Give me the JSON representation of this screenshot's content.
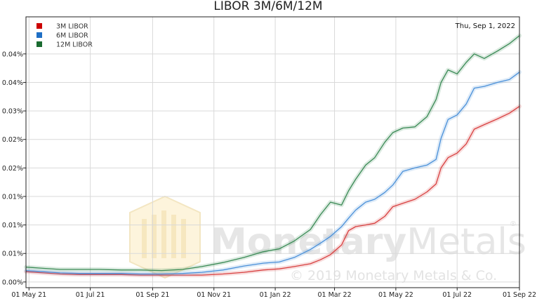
{
  "watermark": {
    "brand_part1": "Monetary",
    "brand_part2": "Metals",
    "registered": "®",
    "copyright": "© 2019 Monetary Metals & Co."
  },
  "date_label": "Thu, Sep 1, 2022",
  "chart_data": {
    "type": "line",
    "title": "LIBOR 3M/6M/12M",
    "xlabel": "",
    "ylabel": "",
    "x_range": [
      "2021-04-28",
      "2022-09-01"
    ],
    "y_range": [
      -0.001,
      0.0465
    ],
    "x_ticks": [
      {
        "date": "2021-05-01",
        "label": "01 May 21"
      },
      {
        "date": "2021-07-01",
        "label": "01 Jul 21"
      },
      {
        "date": "2021-09-01",
        "label": "01 Sep 21"
      },
      {
        "date": "2021-11-01",
        "label": "01 Nov 21"
      },
      {
        "date": "2022-01-01",
        "label": "01 Jan 22"
      },
      {
        "date": "2022-03-01",
        "label": "01 Mar 22"
      },
      {
        "date": "2022-05-01",
        "label": "01 May 22"
      },
      {
        "date": "2022-07-01",
        "label": "01 Jul 22"
      },
      {
        "date": "2022-09-01",
        "label": "01 Sep 22"
      }
    ],
    "y_ticks": [
      {
        "value": 0.0,
        "label": "0.00%"
      },
      {
        "value": 0.005,
        "label": "0.01%"
      },
      {
        "value": 0.01,
        "label": "0.01%"
      },
      {
        "value": 0.015,
        "label": "0.01%"
      },
      {
        "value": 0.02,
        "label": "0.02%"
      },
      {
        "value": 0.025,
        "label": "0.02%"
      },
      {
        "value": 0.03,
        "label": "0.03%"
      },
      {
        "value": 0.035,
        "label": "0.04%"
      },
      {
        "value": 0.04,
        "label": "0.04%"
      }
    ],
    "grid": true,
    "legend_position": "top-left",
    "series": [
      {
        "name": "3M LIBOR",
        "color": "#d84040",
        "legend_color": "#cc0000",
        "points": [
          [
            "2021-04-28",
            0.0018
          ],
          [
            "2021-05-15",
            0.0016
          ],
          [
            "2021-06-01",
            0.0014
          ],
          [
            "2021-06-20",
            0.0013
          ],
          [
            "2021-07-10",
            0.0013
          ],
          [
            "2021-08-01",
            0.0013
          ],
          [
            "2021-08-20",
            0.0012
          ],
          [
            "2021-09-10",
            0.0012
          ],
          [
            "2021-10-01",
            0.0012
          ],
          [
            "2021-10-20",
            0.0012
          ],
          [
            "2021-11-10",
            0.0014
          ],
          [
            "2021-12-01",
            0.0017
          ],
          [
            "2021-12-20",
            0.0021
          ],
          [
            "2022-01-05",
            0.0023
          ],
          [
            "2022-01-20",
            0.0027
          ],
          [
            "2022-02-05",
            0.0032
          ],
          [
            "2022-02-15",
            0.0039
          ],
          [
            "2022-02-25",
            0.0048
          ],
          [
            "2022-03-08",
            0.0065
          ],
          [
            "2022-03-15",
            0.009
          ],
          [
            "2022-03-22",
            0.0097
          ],
          [
            "2022-04-01",
            0.01
          ],
          [
            "2022-04-10",
            0.0103
          ],
          [
            "2022-04-20",
            0.0115
          ],
          [
            "2022-04-28",
            0.0132
          ],
          [
            "2022-05-08",
            0.0138
          ],
          [
            "2022-05-20",
            0.0145
          ],
          [
            "2022-06-01",
            0.0158
          ],
          [
            "2022-06-10",
            0.0172
          ],
          [
            "2022-06-15",
            0.02
          ],
          [
            "2022-06-22",
            0.0218
          ],
          [
            "2022-07-01",
            0.0226
          ],
          [
            "2022-07-10",
            0.0242
          ],
          [
            "2022-07-18",
            0.0268
          ],
          [
            "2022-07-28",
            0.0276
          ],
          [
            "2022-08-10",
            0.0286
          ],
          [
            "2022-08-22",
            0.0296
          ],
          [
            "2022-09-01",
            0.0308
          ]
        ]
      },
      {
        "name": "6M LIBOR",
        "color": "#4a90d9",
        "legend_color": "#1f6fc5",
        "points": [
          [
            "2021-04-28",
            0.002
          ],
          [
            "2021-05-15",
            0.0018
          ],
          [
            "2021-06-01",
            0.0016
          ],
          [
            "2021-06-20",
            0.0015
          ],
          [
            "2021-07-10",
            0.0015
          ],
          [
            "2021-08-01",
            0.0015
          ],
          [
            "2021-08-20",
            0.0014
          ],
          [
            "2021-09-10",
            0.0014
          ],
          [
            "2021-10-01",
            0.0015
          ],
          [
            "2021-10-20",
            0.0017
          ],
          [
            "2021-11-10",
            0.0021
          ],
          [
            "2021-12-01",
            0.0028
          ],
          [
            "2021-12-20",
            0.0033
          ],
          [
            "2022-01-05",
            0.0035
          ],
          [
            "2022-01-20",
            0.0043
          ],
          [
            "2022-02-05",
            0.0057
          ],
          [
            "2022-02-15",
            0.0068
          ],
          [
            "2022-02-25",
            0.008
          ],
          [
            "2022-03-08",
            0.0097
          ],
          [
            "2022-03-15",
            0.0112
          ],
          [
            "2022-03-22",
            0.0126
          ],
          [
            "2022-04-01",
            0.014
          ],
          [
            "2022-04-10",
            0.0145
          ],
          [
            "2022-04-20",
            0.0157
          ],
          [
            "2022-04-28",
            0.017
          ],
          [
            "2022-05-08",
            0.0194
          ],
          [
            "2022-05-20",
            0.02
          ],
          [
            "2022-06-01",
            0.0205
          ],
          [
            "2022-06-10",
            0.0215
          ],
          [
            "2022-06-15",
            0.0252
          ],
          [
            "2022-06-22",
            0.0285
          ],
          [
            "2022-07-01",
            0.0293
          ],
          [
            "2022-07-10",
            0.0312
          ],
          [
            "2022-07-18",
            0.034
          ],
          [
            "2022-07-28",
            0.0343
          ],
          [
            "2022-08-10",
            0.035
          ],
          [
            "2022-08-22",
            0.0355
          ],
          [
            "2022-09-01",
            0.0368
          ]
        ]
      },
      {
        "name": "12M LIBOR",
        "color": "#3a8a55",
        "legend_color": "#1a6b30",
        "points": [
          [
            "2021-04-28",
            0.0026
          ],
          [
            "2021-05-15",
            0.0024
          ],
          [
            "2021-06-01",
            0.0022
          ],
          [
            "2021-06-20",
            0.0022
          ],
          [
            "2021-07-10",
            0.0022
          ],
          [
            "2021-08-01",
            0.0021
          ],
          [
            "2021-08-20",
            0.0021
          ],
          [
            "2021-09-10",
            0.002
          ],
          [
            "2021-10-01",
            0.0022
          ],
          [
            "2021-10-20",
            0.0027
          ],
          [
            "2021-11-10",
            0.0034
          ],
          [
            "2021-12-01",
            0.0043
          ],
          [
            "2021-12-20",
            0.0053
          ],
          [
            "2022-01-05",
            0.0058
          ],
          [
            "2022-01-20",
            0.0072
          ],
          [
            "2022-02-05",
            0.0092
          ],
          [
            "2022-02-15",
            0.0118
          ],
          [
            "2022-02-25",
            0.014
          ],
          [
            "2022-03-08",
            0.0135
          ],
          [
            "2022-03-15",
            0.016
          ],
          [
            "2022-03-22",
            0.018
          ],
          [
            "2022-04-01",
            0.0205
          ],
          [
            "2022-04-10",
            0.0218
          ],
          [
            "2022-04-20",
            0.0245
          ],
          [
            "2022-04-28",
            0.0262
          ],
          [
            "2022-05-08",
            0.027
          ],
          [
            "2022-05-20",
            0.0272
          ],
          [
            "2022-06-01",
            0.029
          ],
          [
            "2022-06-10",
            0.032
          ],
          [
            "2022-06-15",
            0.035
          ],
          [
            "2022-06-22",
            0.0372
          ],
          [
            "2022-07-01",
            0.0365
          ],
          [
            "2022-07-10",
            0.0385
          ],
          [
            "2022-07-18",
            0.04
          ],
          [
            "2022-07-28",
            0.0392
          ],
          [
            "2022-08-10",
            0.0405
          ],
          [
            "2022-08-22",
            0.0418
          ],
          [
            "2022-09-01",
            0.0432
          ]
        ]
      }
    ]
  }
}
